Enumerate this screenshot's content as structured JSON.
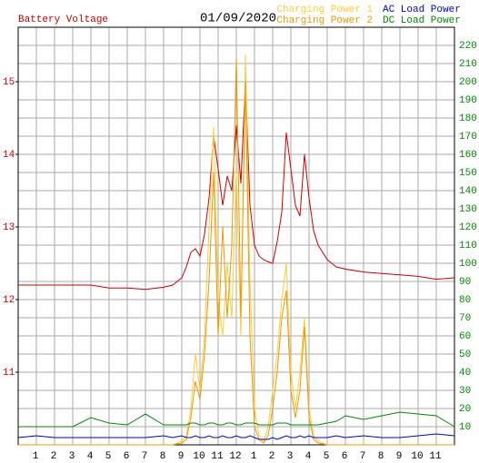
{
  "chart_data": {
    "type": "line",
    "title": "01/09/2020",
    "x": [
      0,
      1,
      2,
      3,
      4,
      5,
      6,
      7,
      8,
      8.5,
      9,
      9.25,
      9.5,
      9.75,
      10,
      10.25,
      10.5,
      10.75,
      11,
      11.25,
      11.5,
      11.75,
      12,
      12.25,
      12.5,
      12.75,
      13,
      13.25,
      13.5,
      13.75,
      14,
      14.25,
      14.5,
      14.75,
      15,
      15.25,
      15.5,
      15.75,
      16,
      16.25,
      16.5,
      17,
      17.5,
      18,
      19,
      20,
      21,
      22,
      23,
      24
    ],
    "xlim": [
      0,
      24
    ],
    "xticks": [
      {
        "value": 1,
        "label": "1"
      },
      {
        "value": 2,
        "label": "2"
      },
      {
        "value": 3,
        "label": "3"
      },
      {
        "value": 4,
        "label": "4"
      },
      {
        "value": 5,
        "label": "5"
      },
      {
        "value": 6,
        "label": "6"
      },
      {
        "value": 7,
        "label": "7"
      },
      {
        "value": 8,
        "label": "8"
      },
      {
        "value": 9,
        "label": "9"
      },
      {
        "value": 10,
        "label": "10"
      },
      {
        "value": 11,
        "label": "11"
      },
      {
        "value": 12,
        "label": "12"
      },
      {
        "value": 13,
        "label": "1"
      },
      {
        "value": 14,
        "label": "2"
      },
      {
        "value": 15,
        "label": "3"
      },
      {
        "value": 16,
        "label": "4"
      },
      {
        "value": 17,
        "label": "5"
      },
      {
        "value": 18,
        "label": "6"
      },
      {
        "value": 19,
        "label": "7"
      },
      {
        "value": 20,
        "label": "8"
      },
      {
        "value": 21,
        "label": "9"
      },
      {
        "value": 22,
        "label": "10"
      },
      {
        "value": 23,
        "label": "11"
      }
    ],
    "ylim": [
      10,
      15.75
    ],
    "yticks": [
      11,
      12,
      13,
      14,
      15
    ],
    "y2lim": [
      0,
      230
    ],
    "y2ticks": [
      10,
      20,
      30,
      40,
      50,
      60,
      70,
      80,
      90,
      100,
      110,
      120,
      130,
      140,
      150,
      160,
      170,
      180,
      190,
      200,
      210,
      220
    ],
    "grid": true,
    "series": [
      {
        "name": "Battery Voltage",
        "color": "#cc0000",
        "values": [
          12.2,
          12.2,
          12.2,
          12.2,
          12.2,
          12.16,
          12.16,
          12.14,
          12.17,
          12.2,
          12.3,
          12.45,
          12.65,
          12.7,
          12.6,
          12.9,
          13.4,
          14.25,
          13.8,
          13.3,
          13.7,
          13.5,
          14.4,
          13.6,
          15.0,
          13.3,
          12.75,
          12.6,
          12.55,
          12.52,
          12.5,
          12.8,
          13.2,
          14.3,
          13.8,
          13.3,
          13.15,
          14.0,
          13.4,
          12.95,
          12.75,
          12.55,
          12.45,
          12.42,
          12.38,
          12.36,
          12.34,
          12.32,
          12.28,
          12.3
        ]
      },
      {
        "name": "Charging Power 1",
        "color": "#ffcc33",
        "axis": "y2",
        "values": [
          0,
          0,
          0,
          0,
          0,
          0,
          0,
          0,
          0,
          0,
          2,
          5,
          20,
          50,
          30,
          60,
          120,
          175,
          80,
          60,
          100,
          70,
          150,
          60,
          215,
          90,
          20,
          5,
          2,
          10,
          30,
          50,
          80,
          100,
          40,
          20,
          40,
          70,
          20,
          5,
          2,
          0,
          0,
          0,
          0,
          0,
          0,
          0,
          0,
          0
        ]
      },
      {
        "name": "Charging Power 2",
        "color": "#ee9900",
        "axis": "y2",
        "values": [
          0,
          0,
          0,
          0,
          0,
          0,
          0,
          0,
          0,
          0,
          1,
          3,
          15,
          35,
          25,
          50,
          90,
          150,
          60,
          120,
          70,
          110,
          213,
          70,
          200,
          60,
          10,
          3,
          1,
          5,
          20,
          40,
          70,
          85,
          30,
          15,
          30,
          65,
          15,
          3,
          1,
          0,
          0,
          0,
          0,
          0,
          0,
          0,
          0,
          0
        ]
      },
      {
        "name": "AC Load Power",
        "color": "#0000cc",
        "axis": "y2",
        "values": [
          4,
          5,
          4,
          4,
          4,
          4,
          4,
          4,
          5,
          4,
          5,
          4,
          4,
          5,
          4,
          4,
          5,
          4,
          4,
          5,
          4,
          4,
          5,
          4,
          4,
          5,
          4,
          3,
          3,
          3,
          4,
          3,
          4,
          5,
          4,
          4,
          5,
          4,
          5,
          4,
          4,
          4,
          5,
          4,
          5,
          4,
          4,
          5,
          6,
          5
        ]
      },
      {
        "name": "DC Load Power",
        "color": "#008800",
        "axis": "y2",
        "values": [
          10,
          10,
          10,
          10,
          15,
          12,
          11,
          17,
          11,
          11,
          11,
          11,
          12,
          12,
          11,
          11,
          12,
          12,
          11,
          11,
          12,
          12,
          11,
          11,
          12,
          12,
          12,
          11,
          11,
          11,
          11,
          12,
          12,
          12,
          11,
          11,
          11,
          11,
          11,
          11,
          11,
          12,
          13,
          16,
          14,
          16,
          18,
          17,
          16,
          10
        ]
      }
    ]
  }
}
